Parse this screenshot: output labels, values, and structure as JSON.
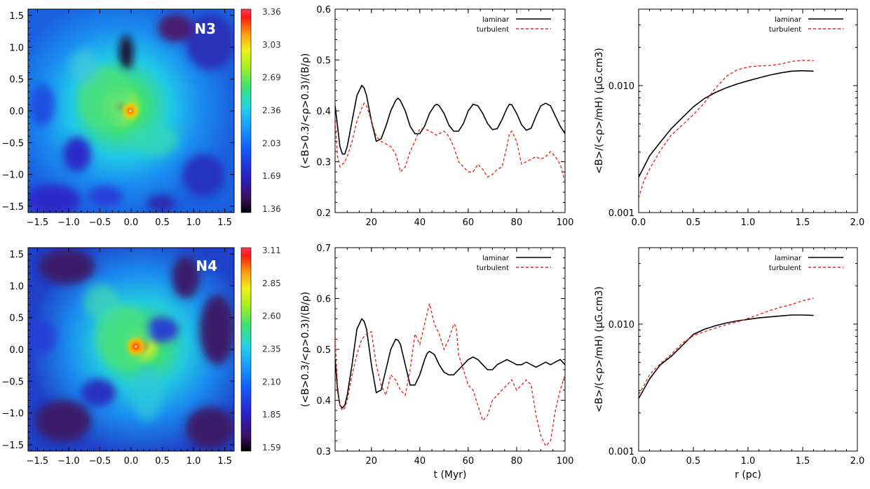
{
  "figure": {
    "panel_labels": [
      "N3",
      "N4"
    ],
    "colors": {
      "laminar": "#000000",
      "turbulent": "#e8281e",
      "axis": "#000000",
      "panel_label": "#ffffff"
    }
  },
  "chart_data": [
    {
      "id": "map_n3",
      "type": "heatmap",
      "title": "N3",
      "xlabel": "",
      "ylabel": "",
      "xlim": [
        -1.65,
        1.65
      ],
      "ylim": [
        -1.6,
        1.6
      ],
      "xticks": [
        -1.5,
        -1.0,
        -0.5,
        0.0,
        0.5,
        1.0,
        1.5
      ],
      "xtick_labels": [
        "−1.5",
        "−1.0",
        "−0.5",
        "0.0",
        "0.5",
        "1.0",
        "1.5"
      ],
      "yticks": [
        -1.5,
        -1.0,
        -0.5,
        0.0,
        0.5,
        1.0,
        1.5
      ],
      "ytick_labels": [
        "−1.5",
        "−1.0",
        "−0.5",
        "0.0",
        "0.5",
        "1.0",
        "1.5"
      ],
      "colorbar": {
        "min": 1.36,
        "max": 3.36,
        "labels": [
          "3.36",
          "3.03",
          "2.69",
          "2.36",
          "2.03",
          "1.69",
          "1.36"
        ]
      },
      "peak": [
        0.0,
        0.0
      ]
    },
    {
      "id": "ratio_n3",
      "type": "line",
      "xlabel": "",
      "ylabel": "(<B>0.3/<ρ>0.3)/(B/ρ)",
      "xlim": [
        5,
        100
      ],
      "ylim": [
        0.2,
        0.6
      ],
      "xticks": [
        20,
        40,
        60,
        80,
        100
      ],
      "yticks": [
        0.2,
        0.3,
        0.4,
        0.5,
        0.6
      ],
      "ytick_labels": [
        "0.2",
        "0.3",
        "0.4",
        "0.5",
        "0.6"
      ],
      "legend": "top-right",
      "x": [
        5,
        6,
        7,
        8,
        9,
        10,
        12,
        14,
        16,
        17,
        18,
        20,
        22,
        24,
        26,
        28,
        30,
        31,
        32,
        34,
        36,
        38,
        40,
        42,
        44,
        46,
        47,
        48,
        50,
        52,
        54,
        56,
        58,
        60,
        62,
        64,
        66,
        68,
        70,
        72,
        74,
        76,
        77,
        78,
        80,
        82,
        84,
        86,
        88,
        90,
        92,
        94,
        96,
        98,
        100
      ],
      "series": [
        {
          "name": "laminar",
          "style": "solid",
          "values": [
            0.41,
            0.37,
            0.33,
            0.315,
            0.315,
            0.33,
            0.38,
            0.43,
            0.45,
            0.445,
            0.43,
            0.38,
            0.34,
            0.345,
            0.37,
            0.4,
            0.42,
            0.425,
            0.42,
            0.4,
            0.37,
            0.355,
            0.355,
            0.37,
            0.395,
            0.41,
            0.413,
            0.41,
            0.395,
            0.372,
            0.36,
            0.36,
            0.375,
            0.4,
            0.413,
            0.41,
            0.395,
            0.375,
            0.363,
            0.365,
            0.383,
            0.405,
            0.413,
            0.412,
            0.395,
            0.373,
            0.362,
            0.366,
            0.39,
            0.41,
            0.415,
            0.41,
            0.39,
            0.37,
            0.355
          ]
        },
        {
          "name": "turbulent",
          "style": "dashed",
          "values": [
            0.38,
            0.31,
            0.29,
            0.295,
            0.3,
            0.31,
            0.34,
            0.38,
            0.405,
            0.415,
            0.41,
            0.38,
            0.35,
            0.34,
            0.335,
            0.33,
            0.315,
            0.3,
            0.28,
            0.29,
            0.32,
            0.34,
            0.365,
            0.365,
            0.36,
            0.355,
            0.352,
            0.355,
            0.36,
            0.35,
            0.33,
            0.3,
            0.29,
            0.28,
            0.28,
            0.295,
            0.285,
            0.27,
            0.275,
            0.285,
            0.29,
            0.33,
            0.355,
            0.36,
            0.34,
            0.295,
            0.3,
            0.305,
            0.31,
            0.305,
            0.31,
            0.32,
            0.31,
            0.295,
            0.26
          ]
        }
      ]
    },
    {
      "id": "bnorm_n3",
      "type": "line",
      "scale_y": "log",
      "xlabel": "",
      "ylabel": "<B>/(<ρ>/mH) (μG.cm3)",
      "xlim": [
        0.0,
        2.0
      ],
      "ylim": [
        0.001,
        0.04
      ],
      "xticks": [
        0.0,
        0.5,
        1.0,
        1.5,
        2.0
      ],
      "xtick_labels": [
        "0.0",
        "0.5",
        "1.0",
        "1.5",
        "2.0"
      ],
      "yticks": [
        0.001,
        0.01
      ],
      "ytick_labels": [
        "0.001",
        "0.010"
      ],
      "legend": "top-right",
      "x": [
        0.0,
        0.05,
        0.1,
        0.2,
        0.3,
        0.4,
        0.5,
        0.6,
        0.7,
        0.8,
        0.9,
        1.0,
        1.1,
        1.2,
        1.3,
        1.4,
        1.5,
        1.6
      ],
      "series": [
        {
          "name": "laminar",
          "style": "solid",
          "values": [
            0.0019,
            0.0023,
            0.0028,
            0.0036,
            0.0046,
            0.0056,
            0.0068,
            0.0079,
            0.0088,
            0.0096,
            0.0103,
            0.0109,
            0.0115,
            0.0121,
            0.0126,
            0.013,
            0.0131,
            0.013
          ]
        },
        {
          "name": "turbulent",
          "style": "dashed",
          "values": [
            0.0013,
            0.0018,
            0.0022,
            0.0031,
            0.0041,
            0.0049,
            0.0059,
            0.0073,
            0.0095,
            0.0118,
            0.0133,
            0.014,
            0.0143,
            0.0144,
            0.0148,
            0.0155,
            0.0158,
            0.0157
          ]
        }
      ]
    },
    {
      "id": "map_n4",
      "type": "heatmap",
      "title": "N4",
      "xlabel": "",
      "ylabel": "",
      "xlim": [
        -1.65,
        1.65
      ],
      "ylim": [
        -1.6,
        1.6
      ],
      "xticks": [
        -1.5,
        -1.0,
        -0.5,
        0.0,
        0.5,
        1.0,
        1.5
      ],
      "xtick_labels": [
        "−1.5",
        "−1.0",
        "−0.5",
        "0.0",
        "0.5",
        "1.0",
        "1.5"
      ],
      "yticks": [
        -1.5,
        -1.0,
        -0.5,
        0.0,
        0.5,
        1.0,
        1.5
      ],
      "ytick_labels": [
        "−1.5",
        "−1.0",
        "−0.5",
        "0.0",
        "0.5",
        "1.0",
        "1.5"
      ],
      "colorbar": {
        "min": 1.59,
        "max": 3.11,
        "labels": [
          "3.11",
          "2.85",
          "2.60",
          "2.35",
          "2.10",
          "1.85",
          "1.59"
        ]
      },
      "peak": [
        0.0,
        0.05
      ]
    },
    {
      "id": "ratio_n4",
      "type": "line",
      "xlabel": "t (Myr)",
      "ylabel": "(<B>0.3/<ρ>0.3)/(B/ρ)",
      "xlim": [
        5,
        100
      ],
      "ylim": [
        0.3,
        0.7
      ],
      "xticks": [
        20,
        40,
        60,
        80,
        100
      ],
      "yticks": [
        0.3,
        0.4,
        0.5,
        0.6,
        0.7
      ],
      "ytick_labels": [
        "0.3",
        "0.4",
        "0.5",
        "0.6",
        "0.7"
      ],
      "legend": "top-right",
      "x": [
        5,
        6,
        7,
        8,
        9,
        10,
        12,
        14,
        16,
        17,
        18,
        20,
        22,
        24,
        26,
        28,
        30,
        31,
        32,
        34,
        36,
        38,
        40,
        42,
        43,
        44,
        46,
        48,
        50,
        52,
        54,
        55,
        56,
        58,
        60,
        62,
        64,
        66,
        68,
        70,
        72,
        74,
        76,
        78,
        80,
        82,
        84,
        86,
        88,
        90,
        92,
        94,
        96,
        98,
        100
      ],
      "series": [
        {
          "name": "laminar",
          "style": "solid",
          "values": [
            0.48,
            0.42,
            0.39,
            0.385,
            0.39,
            0.41,
            0.47,
            0.54,
            0.56,
            0.555,
            0.54,
            0.47,
            0.415,
            0.42,
            0.46,
            0.5,
            0.52,
            0.518,
            0.51,
            0.47,
            0.43,
            0.43,
            0.45,
            0.48,
            0.492,
            0.496,
            0.49,
            0.47,
            0.455,
            0.45,
            0.45,
            0.455,
            0.46,
            0.47,
            0.48,
            0.485,
            0.48,
            0.47,
            0.46,
            0.46,
            0.47,
            0.475,
            0.48,
            0.475,
            0.47,
            0.47,
            0.475,
            0.47,
            0.465,
            0.47,
            0.475,
            0.47,
            0.475,
            0.48,
            0.47
          ]
        },
        {
          "name": "turbulent",
          "style": "dashed",
          "values": [
            0.52,
            0.43,
            0.39,
            0.38,
            0.385,
            0.4,
            0.45,
            0.49,
            0.52,
            0.525,
            0.53,
            0.535,
            0.47,
            0.43,
            0.41,
            0.45,
            0.44,
            0.43,
            0.42,
            0.41,
            0.46,
            0.53,
            0.51,
            0.55,
            0.57,
            0.59,
            0.55,
            0.53,
            0.5,
            0.52,
            0.55,
            0.545,
            0.49,
            0.46,
            0.43,
            0.42,
            0.39,
            0.36,
            0.37,
            0.4,
            0.41,
            0.42,
            0.43,
            0.44,
            0.42,
            0.43,
            0.44,
            0.43,
            0.37,
            0.33,
            0.31,
            0.32,
            0.38,
            0.42,
            0.45
          ]
        }
      ]
    },
    {
      "id": "bnorm_n4",
      "type": "line",
      "scale_y": "log",
      "xlabel": "r (pc)",
      "ylabel": "<B>/(<ρ>/mH) (μG.cm3)",
      "xlim": [
        0.0,
        2.0
      ],
      "ylim": [
        0.001,
        0.04
      ],
      "xticks": [
        0.0,
        0.5,
        1.0,
        1.5,
        2.0
      ],
      "xtick_labels": [
        "0.0",
        "0.5",
        "1.0",
        "1.5",
        "2.0"
      ],
      "yticks": [
        0.001,
        0.01
      ],
      "ytick_labels": [
        "0.001",
        "0.010"
      ],
      "legend": "top-right",
      "x": [
        0.0,
        0.05,
        0.1,
        0.2,
        0.3,
        0.4,
        0.5,
        0.6,
        0.7,
        0.8,
        0.9,
        1.0,
        1.1,
        1.2,
        1.3,
        1.4,
        1.5,
        1.6
      ],
      "series": [
        {
          "name": "laminar",
          "style": "solid",
          "values": [
            0.0026,
            0.0031,
            0.0037,
            0.0048,
            0.0056,
            0.0068,
            0.0083,
            0.0091,
            0.0097,
            0.0102,
            0.0106,
            0.0109,
            0.0112,
            0.0114,
            0.0116,
            0.0118,
            0.0118,
            0.0117
          ]
        },
        {
          "name": "turbulent",
          "style": "dashed",
          "values": [
            0.0028,
            0.0033,
            0.004,
            0.0049,
            0.0058,
            0.0071,
            0.0081,
            0.0087,
            0.0093,
            0.0099,
            0.0104,
            0.0111,
            0.0119,
            0.0128,
            0.0136,
            0.0143,
            0.0153,
            0.016
          ]
        }
      ]
    }
  ]
}
